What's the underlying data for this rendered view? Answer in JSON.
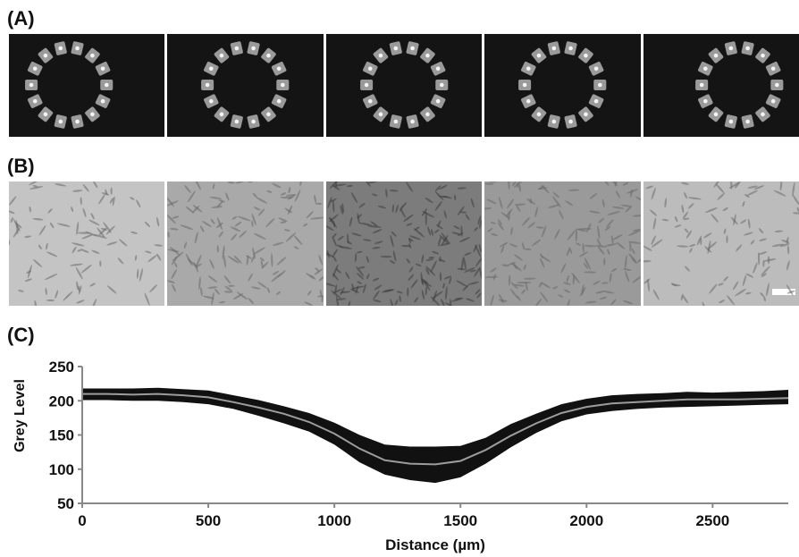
{
  "panels": {
    "a_label": "(A)",
    "b_label": "(B)",
    "c_label": "(C)"
  },
  "panel_a": {
    "tile_count": 5,
    "style": "fluorescence ring of 14 microwells on dark background"
  },
  "panel_b": {
    "tile_count": 5,
    "style": "phase-contrast cell monolayer"
  },
  "colors": {
    "band": "#111111",
    "mean_line": "#9c9c9c",
    "axis": "#888888"
  },
  "chart_data": {
    "type": "line",
    "title": "",
    "xlabel": "Distance (µm)",
    "ylabel": "Grey Level",
    "xlim": [
      0,
      2800
    ],
    "ylim": [
      50,
      250
    ],
    "xticks": [
      0,
      500,
      1000,
      1500,
      2000,
      2500
    ],
    "yticks": [
      50,
      100,
      150,
      200,
      250
    ],
    "grid": false,
    "legend": "none",
    "series": [
      {
        "style": "mean line (grey)",
        "x": [
          0,
          100,
          200,
          300,
          400,
          500,
          600,
          700,
          800,
          900,
          1000,
          1100,
          1200,
          1300,
          1400,
          1500,
          1600,
          1700,
          1800,
          1900,
          2000,
          2100,
          2200,
          2300,
          2400,
          2500,
          2600,
          2700,
          2800
        ],
        "values": [
          210,
          210,
          209,
          210,
          208,
          205,
          198,
          190,
          181,
          169,
          152,
          130,
          113,
          108,
          107,
          112,
          128,
          149,
          167,
          182,
          191,
          196,
          198,
          200,
          202,
          202,
          202,
          203,
          204
        ]
      },
      {
        "style": "upper envelope (black band)",
        "x": [
          0,
          100,
          200,
          300,
          400,
          500,
          600,
          700,
          800,
          900,
          1000,
          1100,
          1200,
          1300,
          1400,
          1500,
          1600,
          1700,
          1800,
          1900,
          2000,
          2100,
          2200,
          2300,
          2400,
          2500,
          2600,
          2700,
          2800
        ],
        "values": [
          218,
          218,
          218,
          219,
          217,
          215,
          208,
          201,
          192,
          182,
          168,
          150,
          136,
          133,
          133,
          134,
          146,
          166,
          181,
          195,
          203,
          208,
          210,
          211,
          213,
          212,
          213,
          214,
          216
        ]
      },
      {
        "style": "lower envelope (black band)",
        "x": [
          0,
          100,
          200,
          300,
          400,
          500,
          600,
          700,
          800,
          900,
          1000,
          1100,
          1200,
          1300,
          1400,
          1500,
          1600,
          1700,
          1800,
          1900,
          2000,
          2100,
          2200,
          2300,
          2400,
          2500,
          2600,
          2700,
          2800
        ],
        "values": [
          201,
          201,
          200,
          200,
          198,
          195,
          188,
          178,
          167,
          155,
          136,
          110,
          92,
          84,
          80,
          88,
          108,
          132,
          153,
          170,
          180,
          185,
          188,
          190,
          191,
          192,
          193,
          194,
          195
        ]
      }
    ]
  }
}
